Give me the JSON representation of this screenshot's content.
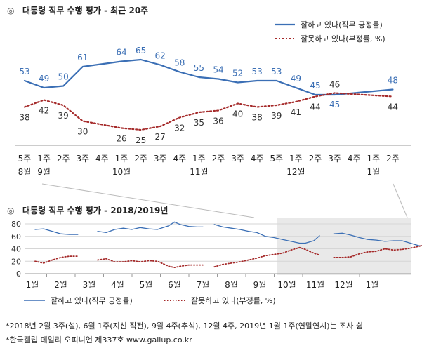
{
  "chart_data": [
    {
      "type": "line",
      "title": "대통령 직무 수행 평가 - 최근 20주",
      "title_marker": "◎",
      "x_labels": [
        {
          "week": "5주",
          "month": "8월"
        },
        {
          "week": "1주",
          "month": "9월"
        },
        {
          "week": "2주",
          "month": ""
        },
        {
          "week": "3주",
          "month": ""
        },
        {
          "week": "4주",
          "month": ""
        },
        {
          "week": "1주",
          "month": "10월"
        },
        {
          "week": "2주",
          "month": ""
        },
        {
          "week": "3주",
          "month": ""
        },
        {
          "week": "4주",
          "month": ""
        },
        {
          "week": "1주",
          "month": "11월"
        },
        {
          "week": "2주",
          "month": ""
        },
        {
          "week": "3주",
          "month": ""
        },
        {
          "week": "4주",
          "month": ""
        },
        {
          "week": "5주",
          "month": ""
        },
        {
          "week": "1주",
          "month": "12월"
        },
        {
          "week": "2주",
          "month": ""
        },
        {
          "week": "3주",
          "month": ""
        },
        {
          "week": "4주",
          "month": ""
        },
        {
          "week": "1주",
          "month": "1월"
        },
        {
          "week": "2주",
          "month": ""
        }
      ],
      "series": [
        {
          "name": "잘하고 있다(직무 긍정률)",
          "color": "#3b6fb5",
          "style": "solid",
          "points": [
            {
              "x": 0,
              "y": 53
            },
            {
              "x": 1,
              "y": 49
            },
            {
              "x": 2,
              "y": 50
            },
            {
              "x": 3,
              "y": 61
            },
            {
              "x": 5,
              "y": 64
            },
            {
              "x": 6,
              "y": 65
            },
            {
              "x": 7,
              "y": 62
            },
            {
              "x": 8,
              "y": 58
            },
            {
              "x": 9,
              "y": 55
            },
            {
              "x": 10,
              "y": 54
            },
            {
              "x": 11,
              "y": 52
            },
            {
              "x": 12,
              "y": 53
            },
            {
              "x": 13,
              "y": 53
            },
            {
              "x": 14,
              "y": 49
            },
            {
              "x": 15,
              "y": 45
            },
            {
              "x": 16,
              "y": 45
            },
            {
              "x": 19,
              "y": 48
            }
          ]
        },
        {
          "name": "잘못하고 있다(부정률, %)",
          "color": "#a52a2a",
          "style": "dotted",
          "points": [
            {
              "x": 0,
              "y": 38
            },
            {
              "x": 1,
              "y": 42
            },
            {
              "x": 2,
              "y": 39
            },
            {
              "x": 3,
              "y": 30
            },
            {
              "x": 5,
              "y": 26
            },
            {
              "x": 6,
              "y": 25
            },
            {
              "x": 7,
              "y": 27
            },
            {
              "x": 8,
              "y": 32
            },
            {
              "x": 9,
              "y": 35
            },
            {
              "x": 10,
              "y": 36
            },
            {
              "x": 11,
              "y": 40
            },
            {
              "x": 12,
              "y": 38
            },
            {
              "x": 13,
              "y": 39
            },
            {
              "x": 14,
              "y": 41
            },
            {
              "x": 15,
              "y": 44
            },
            {
              "x": 16,
              "y": 46
            },
            {
              "x": 19,
              "y": 44
            }
          ]
        }
      ],
      "legend_position": "top-right"
    },
    {
      "type": "line",
      "title": "대통령 직무 수행 평가 - 2018/2019년",
      "title_marker": "◎",
      "ylim": [
        0,
        80
      ],
      "y_ticks": [
        0,
        20,
        40,
        60,
        80
      ],
      "grid": true,
      "x_tick_labels": [
        "1월",
        "2월",
        "3월",
        "4월",
        "5월",
        "6월",
        "7월",
        "8월",
        "9월",
        "10월",
        "11월",
        "12월",
        "1월"
      ],
      "highlight_range_months": [
        8.6,
        13.8
      ],
      "series": [
        {
          "name": "잘하고 있다(직무 긍정률)",
          "color": "#3b6fb5",
          "style": "solid",
          "segments": [
            [
              [
                0.1,
                71
              ],
              [
                0.4,
                72
              ],
              [
                0.7,
                68
              ],
              [
                1.0,
                64
              ],
              [
                1.3,
                63
              ],
              [
                1.6,
                63
              ]
            ],
            [
              [
                2.3,
                68
              ],
              [
                2.6,
                66
              ],
              [
                2.9,
                71
              ],
              [
                3.2,
                73
              ],
              [
                3.5,
                71
              ],
              [
                3.8,
                74
              ],
              [
                4.1,
                72
              ],
              [
                4.4,
                71
              ],
              [
                4.6,
                74
              ],
              [
                4.8,
                77
              ],
              [
                5.0,
                83
              ],
              [
                5.2,
                79
              ],
              [
                5.5,
                76
              ],
              [
                5.8,
                75
              ],
              [
                6.0,
                75
              ]
            ],
            [
              [
                6.4,
                79
              ],
              [
                6.7,
                75
              ],
              [
                7.0,
                73
              ],
              [
                7.3,
                71
              ],
              [
                7.6,
                68
              ],
              [
                7.9,
                66
              ],
              [
                8.2,
                60
              ],
              [
                8.5,
                58
              ],
              [
                8.8,
                55
              ],
              [
                9.1,
                52
              ],
              [
                9.4,
                49
              ],
              [
                9.6,
                49
              ],
              [
                9.9,
                53
              ],
              [
                10.1,
                61
              ]
            ],
            [
              [
                10.6,
                64
              ],
              [
                10.9,
                65
              ],
              [
                11.2,
                62
              ],
              [
                11.5,
                58
              ],
              [
                11.8,
                55
              ],
              [
                12.1,
                54
              ],
              [
                12.4,
                52
              ],
              [
                12.7,
                53
              ],
              [
                13.0,
                53
              ],
              [
                13.3,
                49
              ],
              [
                13.6,
                45
              ],
              [
                13.8,
                45
              ]
            ],
            [
              [
                14.4,
                48
              ],
              [
                14.7,
                48
              ]
            ]
          ]
        },
        {
          "name": "잘못하고 있다(부정률, %)",
          "color": "#a52a2a",
          "style": "dotted",
          "segments": [
            [
              [
                0.1,
                20
              ],
              [
                0.4,
                17
              ],
              [
                0.7,
                22
              ],
              [
                1.0,
                26
              ],
              [
                1.3,
                28
              ],
              [
                1.6,
                28
              ]
            ],
            [
              [
                2.3,
                22
              ],
              [
                2.6,
                24
              ],
              [
                2.9,
                19
              ],
              [
                3.2,
                19
              ],
              [
                3.5,
                21
              ],
              [
                3.8,
                19
              ],
              [
                4.1,
                21
              ],
              [
                4.4,
                20
              ],
              [
                4.6,
                16
              ],
              [
                4.8,
                12
              ],
              [
                5.0,
                10
              ],
              [
                5.2,
                12
              ],
              [
                5.5,
                14
              ],
              [
                5.8,
                14
              ],
              [
                6.0,
                14
              ]
            ],
            [
              [
                6.4,
                11
              ],
              [
                6.7,
                15
              ],
              [
                7.0,
                17
              ],
              [
                7.3,
                19
              ],
              [
                7.6,
                22
              ],
              [
                7.9,
                25
              ],
              [
                8.2,
                29
              ],
              [
                8.5,
                31
              ],
              [
                8.8,
                33
              ],
              [
                9.1,
                38
              ],
              [
                9.4,
                42
              ],
              [
                9.6,
                39
              ],
              [
                9.9,
                33
              ],
              [
                10.1,
                30
              ]
            ],
            [
              [
                10.6,
                26
              ],
              [
                10.9,
                26
              ],
              [
                11.2,
                27
              ],
              [
                11.5,
                32
              ],
              [
                11.8,
                35
              ],
              [
                12.1,
                36
              ],
              [
                12.4,
                40
              ],
              [
                12.7,
                38
              ],
              [
                13.0,
                39
              ],
              [
                13.3,
                41
              ],
              [
                13.6,
                44
              ],
              [
                13.8,
                46
              ]
            ],
            [
              [
                14.4,
                44
              ],
              [
                14.7,
                44
              ]
            ]
          ]
        }
      ],
      "legend_position": "bottom"
    }
  ],
  "footnotes": [
    "*2018년 2월 3주(설), 6월 1주(지선 직전), 9월 4주(추석), 12월 4주, 2019년 1월 1주(연말연시)는 조사 쉼",
    "*한국갤럽 데일리 오피니언 제337호 www.gallup.co.kr"
  ]
}
